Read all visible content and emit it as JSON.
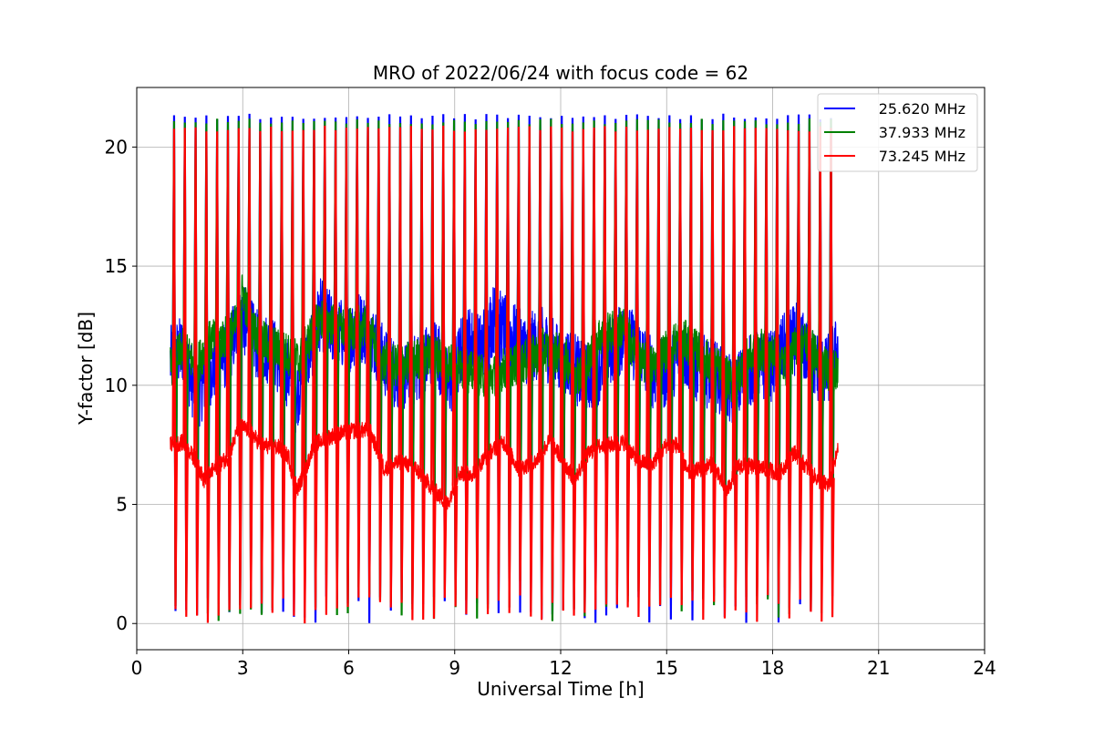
{
  "chart_data": {
    "type": "line",
    "title": "MRO of 2022/06/24 with focus code = 62",
    "xlabel": "Universal Time [h]",
    "ylabel": "Y-factor [dB]",
    "xlim": [
      0,
      24
    ],
    "ylim": [
      -1.1,
      22.5
    ],
    "xticks": [
      0,
      3,
      6,
      9,
      12,
      15,
      18,
      21,
      24
    ],
    "yticks": [
      0,
      5,
      10,
      15,
      20
    ],
    "grid": true,
    "legend_position": "top-right",
    "x_data_range": [
      0.95,
      19.85
    ],
    "calibration_pulse_count": 62,
    "series": [
      {
        "name": "25.620 MHz",
        "color": "#0000ff",
        "pulse_peak": 21.4,
        "pulse_floor": 0.0,
        "baseline": [
          [
            0.95,
            11.0
          ],
          [
            1.3,
            11.5
          ],
          [
            1.7,
            9.5
          ],
          [
            2.0,
            10.5
          ],
          [
            2.5,
            11.3
          ],
          [
            3.0,
            12.8
          ],
          [
            3.4,
            11.7
          ],
          [
            3.8,
            11.5
          ],
          [
            4.3,
            10.5
          ],
          [
            4.5,
            9.5
          ],
          [
            4.8,
            11.0
          ],
          [
            5.2,
            13.0
          ],
          [
            5.6,
            12.3
          ],
          [
            6.0,
            12.0
          ],
          [
            6.3,
            12.5
          ],
          [
            6.6,
            12.2
          ],
          [
            7.0,
            11.0
          ],
          [
            7.5,
            10.2
          ],
          [
            8.0,
            10.8
          ],
          [
            8.5,
            11.5
          ],
          [
            8.8,
            10.0
          ],
          [
            9.0,
            10.5
          ],
          [
            9.3,
            12.0
          ],
          [
            9.7,
            11.5
          ],
          [
            10.1,
            12.8
          ],
          [
            10.5,
            12.2
          ],
          [
            11.0,
            11.5
          ],
          [
            11.5,
            11.8
          ],
          [
            12.0,
            11.0
          ],
          [
            12.3,
            11.0
          ],
          [
            12.6,
            10.3
          ],
          [
            13.0,
            10.5
          ],
          [
            13.4,
            11.5
          ],
          [
            13.8,
            12.0
          ],
          [
            14.2,
            11.5
          ],
          [
            14.6,
            10.5
          ],
          [
            15.0,
            10.5
          ],
          [
            15.4,
            11.5
          ],
          [
            15.8,
            10.8
          ],
          [
            16.2,
            10.5
          ],
          [
            16.6,
            10.2
          ],
          [
            16.9,
            9.5
          ],
          [
            17.2,
            10.5
          ],
          [
            17.6,
            10.8
          ],
          [
            18.0,
            10.8
          ],
          [
            18.3,
            11.5
          ],
          [
            18.7,
            12.0
          ],
          [
            19.1,
            11.0
          ],
          [
            19.5,
            10.5
          ],
          [
            19.85,
            11.5
          ]
        ]
      },
      {
        "name": "37.933 MHz",
        "color": "#008000",
        "pulse_peak": 21.2,
        "pulse_floor": 0.1,
        "baseline": [
          [
            0.95,
            10.8
          ],
          [
            1.3,
            11.5
          ],
          [
            1.7,
            10.8
          ],
          [
            2.0,
            11.8
          ],
          [
            2.5,
            12.0
          ],
          [
            2.8,
            12.5
          ],
          [
            3.0,
            14.0
          ],
          [
            3.2,
            12.5
          ],
          [
            3.6,
            11.8
          ],
          [
            4.0,
            11.5
          ],
          [
            4.3,
            11.3
          ],
          [
            4.6,
            11.0
          ],
          [
            4.9,
            12.0
          ],
          [
            5.2,
            12.8
          ],
          [
            5.6,
            12.5
          ],
          [
            6.0,
            12.3
          ],
          [
            6.3,
            12.5
          ],
          [
            6.6,
            12.3
          ],
          [
            6.9,
            11.0
          ],
          [
            7.3,
            10.8
          ],
          [
            7.8,
            11.0
          ],
          [
            8.2,
            11.3
          ],
          [
            8.6,
            11.2
          ],
          [
            9.0,
            10.8
          ],
          [
            9.5,
            10.5
          ],
          [
            10.0,
            10.3
          ],
          [
            10.5,
            10.8
          ],
          [
            11.0,
            11.0
          ],
          [
            11.5,
            11.5
          ],
          [
            12.0,
            11.3
          ],
          [
            12.5,
            10.5
          ],
          [
            12.8,
            11.0
          ],
          [
            13.0,
            12.0
          ],
          [
            13.4,
            12.2
          ],
          [
            13.8,
            12.5
          ],
          [
            14.2,
            11.0
          ],
          [
            14.6,
            10.8
          ],
          [
            15.0,
            11.5
          ],
          [
            15.4,
            12.0
          ],
          [
            15.8,
            11.5
          ],
          [
            16.2,
            11.0
          ],
          [
            16.6,
            10.5
          ],
          [
            16.9,
            10.0
          ],
          [
            17.2,
            11.0
          ],
          [
            17.6,
            11.5
          ],
          [
            18.0,
            11.3
          ],
          [
            18.4,
            10.8
          ],
          [
            18.7,
            11.8
          ],
          [
            19.0,
            11.8
          ],
          [
            19.4,
            10.8
          ],
          [
            19.85,
            10.5
          ]
        ]
      },
      {
        "name": "73.245 MHz",
        "color": "#ff0000",
        "pulse_peak": 20.9,
        "pulse_floor": 0.0,
        "baseline": [
          [
            0.95,
            7.5
          ],
          [
            1.3,
            7.6
          ],
          [
            1.7,
            6.8
          ],
          [
            1.9,
            6.0
          ],
          [
            2.2,
            6.5
          ],
          [
            2.6,
            7.0
          ],
          [
            2.9,
            8.3
          ],
          [
            3.2,
            8.1
          ],
          [
            3.5,
            7.5
          ],
          [
            4.0,
            7.4
          ],
          [
            4.3,
            7.0
          ],
          [
            4.5,
            5.5
          ],
          [
            4.8,
            6.5
          ],
          [
            5.0,
            7.5
          ],
          [
            5.4,
            7.8
          ],
          [
            5.8,
            8.0
          ],
          [
            6.2,
            8.1
          ],
          [
            6.6,
            8.1
          ],
          [
            7.0,
            6.5
          ],
          [
            7.5,
            6.8
          ],
          [
            7.9,
            6.5
          ],
          [
            8.3,
            5.8
          ],
          [
            8.8,
            5.0
          ],
          [
            9.1,
            6.3
          ],
          [
            9.5,
            6.3
          ],
          [
            10.0,
            7.2
          ],
          [
            10.4,
            7.6
          ],
          [
            10.8,
            6.5
          ],
          [
            11.3,
            6.8
          ],
          [
            11.7,
            7.7
          ],
          [
            12.0,
            7.0
          ],
          [
            12.4,
            6.0
          ],
          [
            12.7,
            7.0
          ],
          [
            13.0,
            7.4
          ],
          [
            13.4,
            7.5
          ],
          [
            13.8,
            7.6
          ],
          [
            14.2,
            6.8
          ],
          [
            14.6,
            6.7
          ],
          [
            15.0,
            7.5
          ],
          [
            15.3,
            7.5
          ],
          [
            15.6,
            6.3
          ],
          [
            16.0,
            6.5
          ],
          [
            16.3,
            6.7
          ],
          [
            16.7,
            5.5
          ],
          [
            17.0,
            6.6
          ],
          [
            17.4,
            6.6
          ],
          [
            17.8,
            6.5
          ],
          [
            18.2,
            6.3
          ],
          [
            18.6,
            7.2
          ],
          [
            19.0,
            6.5
          ],
          [
            19.3,
            6.0
          ],
          [
            19.6,
            5.8
          ],
          [
            19.85,
            7.3
          ]
        ]
      }
    ]
  }
}
